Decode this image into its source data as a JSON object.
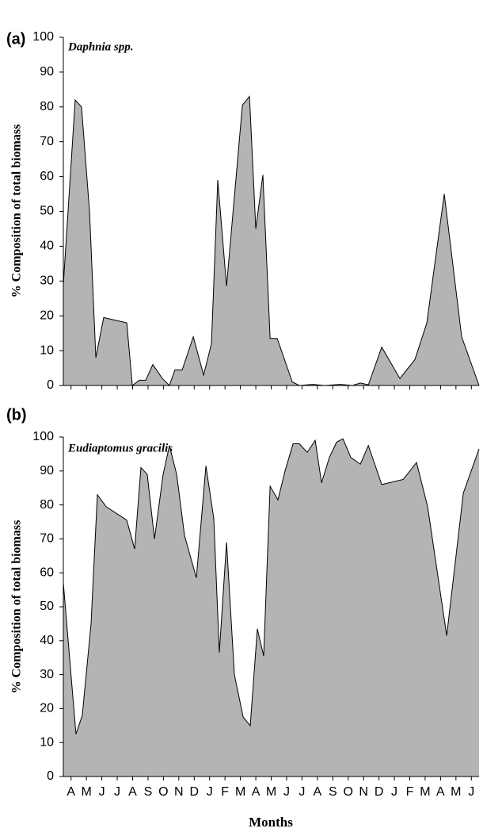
{
  "chart_data": [
    {
      "type": "area",
      "panel_label": "(a)",
      "title": "Daphnia spp.",
      "ylabel": "% Composition of total biomass",
      "color": "#b4b4b4",
      "xlim": [
        0,
        27
      ],
      "ylim": [
        0,
        100
      ],
      "yticks": [
        0,
        10,
        20,
        30,
        40,
        50,
        60,
        70,
        80,
        90,
        100
      ],
      "x": [
        0,
        0.77,
        1.18,
        1.7,
        2.11,
        2.62,
        4.12,
        4.48,
        4.94,
        5.35,
        5.81,
        6.43,
        6.89,
        7.25,
        7.72,
        8.44,
        9.11,
        9.62,
        10.03,
        10.6,
        11.63,
        12.09,
        12.5,
        12.96,
        13.43,
        13.89,
        14.4,
        14.87,
        15.33,
        16.2,
        16.98,
        18.0,
        18.78,
        19.29,
        19.81,
        20.68,
        21.86,
        22.84,
        23.61,
        24.74,
        25.87,
        27
      ],
      "values": [
        29,
        82,
        80,
        50,
        8,
        19.5,
        18,
        0,
        1.5,
        1.5,
        6,
        2,
        0,
        4.5,
        4.5,
        14,
        3,
        12,
        59,
        28.5,
        80.5,
        83,
        45,
        60.5,
        13.5,
        13.5,
        7,
        1,
        0,
        0.3,
        0,
        0.3,
        0,
        0.7,
        0.2,
        11,
        2,
        7.5,
        18,
        55,
        14,
        0
      ]
    },
    {
      "type": "area",
      "panel_label": "(b)",
      "title": "Eudiaptomus gracilis",
      "ylabel": "% Composition of total biomass",
      "xlabel": "Months",
      "color": "#b4b4b4",
      "xlim": [
        0,
        27
      ],
      "ylim": [
        0,
        100
      ],
      "yticks": [
        0,
        10,
        20,
        30,
        40,
        50,
        60,
        70,
        80,
        90,
        100
      ],
      "xticks": [
        {
          "value": 0.5,
          "label": "A"
        },
        {
          "value": 1.5,
          "label": "M"
        },
        {
          "value": 2.5,
          "label": "J"
        },
        {
          "value": 3.5,
          "label": "J"
        },
        {
          "value": 4.5,
          "label": "A"
        },
        {
          "value": 5.5,
          "label": "S"
        },
        {
          "value": 6.5,
          "label": "O"
        },
        {
          "value": 7.5,
          "label": "N"
        },
        {
          "value": 8.5,
          "label": "D"
        },
        {
          "value": 9.5,
          "label": "J"
        },
        {
          "value": 10.5,
          "label": "F"
        },
        {
          "value": 11.5,
          "label": "M"
        },
        {
          "value": 12.5,
          "label": "A"
        },
        {
          "value": 13.5,
          "label": "M"
        },
        {
          "value": 14.5,
          "label": "J"
        },
        {
          "value": 15.5,
          "label": "J"
        },
        {
          "value": 16.5,
          "label": "A"
        },
        {
          "value": 17.5,
          "label": "S"
        },
        {
          "value": 18.5,
          "label": "O"
        },
        {
          "value": 19.5,
          "label": "N"
        },
        {
          "value": 20.5,
          "label": "D"
        },
        {
          "value": 21.5,
          "label": "J"
        },
        {
          "value": 22.5,
          "label": "F"
        },
        {
          "value": 23.5,
          "label": "M"
        },
        {
          "value": 24.5,
          "label": "A"
        },
        {
          "value": 25.5,
          "label": "M"
        },
        {
          "value": 26.5,
          "label": "J"
        }
      ],
      "x": [
        0,
        0.82,
        1.23,
        1.8,
        2.21,
        2.78,
        4.12,
        4.63,
        5.04,
        5.45,
        5.92,
        6.48,
        6.89,
        7.36,
        7.87,
        8.64,
        9.26,
        9.77,
        10.13,
        10.6,
        11.11,
        11.68,
        12.14,
        12.6,
        13.01,
        13.43,
        13.94,
        14.4,
        14.92,
        15.33,
        15.84,
        16.36,
        16.77,
        17.28,
        17.75,
        18.16,
        18.67,
        19.29,
        19.81,
        20.68,
        22.07,
        22.94,
        23.66,
        24.9,
        25.98,
        27
      ],
      "values": [
        57,
        12.5,
        18,
        45,
        83,
        79.5,
        75.5,
        67,
        91,
        89,
        70,
        89,
        97.5,
        89,
        71,
        58.5,
        91.5,
        76,
        36.5,
        69,
        30,
        17.5,
        15,
        43.5,
        35.5,
        85.5,
        81.5,
        90,
        98,
        98,
        95.5,
        99,
        86.5,
        94,
        98.5,
        99.5,
        94,
        92,
        97.5,
        86,
        87.5,
        92.5,
        79.5,
        41.5,
        83.5,
        96.5
      ]
    }
  ]
}
